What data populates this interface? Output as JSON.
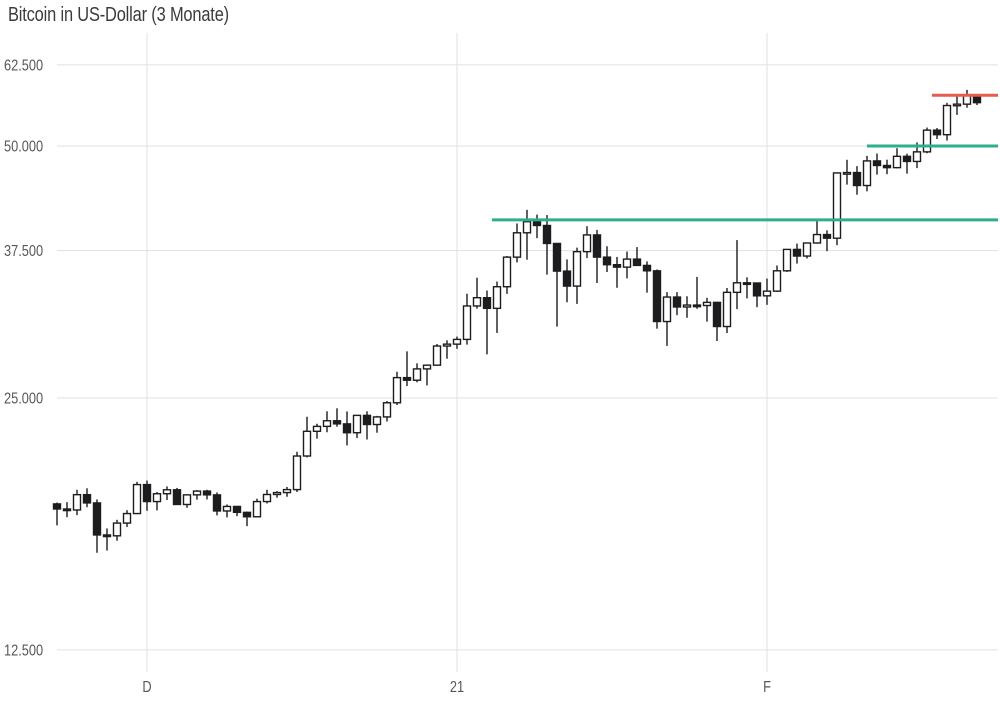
{
  "title": "Bitcoin in US-Dollar (3 Monate)",
  "chart_data": {
    "type": "candlestick",
    "instrument": "Bitcoin in US-Dollar",
    "period_label": "3 Monate",
    "y_scale": "log",
    "grid": true,
    "y_ticks": [
      {
        "label": "62.500",
        "value": 62500
      },
      {
        "label": "50.000",
        "value": 50000
      },
      {
        "label": "37.500",
        "value": 37500
      },
      {
        "label": "25.000",
        "value": 25000
      },
      {
        "label": "12.500",
        "value": 12500
      }
    ],
    "x_ticks": [
      {
        "label": "D",
        "candle_index": 9
      },
      {
        "label": "21",
        "candle_index": 40
      },
      {
        "label": "F",
        "candle_index": 71
      }
    ],
    "y_range": [
      11500,
      65000
    ],
    "candles_ohlc": [
      [
        18680,
        18750,
        17610,
        18420
      ],
      [
        18420,
        18770,
        18010,
        18370
      ],
      [
        18370,
        19420,
        18110,
        19160
      ],
      [
        19160,
        19500,
        18510,
        18730
      ],
      [
        18730,
        18910,
        16330,
        17150
      ],
      [
        17150,
        17460,
        16430,
        17110
      ],
      [
        17110,
        17880,
        16880,
        17720
      ],
      [
        17720,
        18360,
        17530,
        18190
      ],
      [
        18190,
        19850,
        18190,
        19700
      ],
      [
        19700,
        19920,
        18330,
        18800
      ],
      [
        18800,
        19300,
        18350,
        19210
      ],
      [
        19210,
        19600,
        18880,
        19420
      ],
      [
        19420,
        19520,
        18650,
        18650
      ],
      [
        18650,
        19160,
        18480,
        19150
      ],
      [
        19150,
        19400,
        18900,
        19350
      ],
      [
        19350,
        19420,
        18910,
        19150
      ],
      [
        19150,
        19280,
        18100,
        18320
      ],
      [
        18320,
        18650,
        18000,
        18550
      ],
      [
        18550,
        18560,
        18060,
        18250
      ],
      [
        18250,
        18290,
        17570,
        18030
      ],
      [
        18030,
        18950,
        18030,
        18800
      ],
      [
        18800,
        19420,
        18700,
        19170
      ],
      [
        19170,
        19350,
        19000,
        19270
      ],
      [
        19270,
        19570,
        19050,
        19430
      ],
      [
        19430,
        21560,
        19300,
        21310
      ],
      [
        21310,
        23740,
        21230,
        22810
      ],
      [
        22810,
        23290,
        22350,
        23120
      ],
      [
        23120,
        24100,
        22750,
        23480
      ],
      [
        23480,
        24300,
        23100,
        23280
      ],
      [
        23280,
        24090,
        21940,
        22720
      ],
      [
        22720,
        23830,
        22390,
        23830
      ],
      [
        23830,
        24100,
        22300,
        23240
      ],
      [
        23240,
        23800,
        22720,
        23730
      ],
      [
        23730,
        24790,
        23430,
        24670
      ],
      [
        24670,
        26870,
        24520,
        26440
      ],
      [
        26440,
        28420,
        25830,
        26250
      ],
      [
        26250,
        27500,
        26100,
        27080
      ],
      [
        27080,
        27410,
        25880,
        27360
      ],
      [
        27360,
        29000,
        27320,
        28840
      ],
      [
        28840,
        29300,
        27850,
        28990
      ],
      [
        28990,
        29600,
        28620,
        29370
      ],
      [
        29370,
        33300,
        28950,
        32200
      ],
      [
        32200,
        34800,
        31960,
        32940
      ],
      [
        32940,
        33600,
        28190,
        31990
      ],
      [
        31990,
        34440,
        29900,
        33950
      ],
      [
        33950,
        36940,
        33290,
        36830
      ],
      [
        36830,
        40400,
        36300,
        39380
      ],
      [
        39380,
        41950,
        36570,
        40600
      ],
      [
        40600,
        41400,
        38800,
        40180
      ],
      [
        40180,
        41350,
        35100,
        38240
      ],
      [
        38240,
        38270,
        30420,
        35440
      ],
      [
        35440,
        36600,
        32530,
        34010
      ],
      [
        34010,
        37800,
        32380,
        37390
      ],
      [
        37390,
        40100,
        36730,
        39150
      ],
      [
        39150,
        39700,
        34300,
        36830
      ],
      [
        36830,
        37950,
        35350,
        36070
      ],
      [
        36070,
        36850,
        33850,
        35830
      ],
      [
        35830,
        37400,
        34740,
        36630
      ],
      [
        36630,
        37860,
        36010,
        36000
      ],
      [
        36000,
        36400,
        33400,
        35470
      ],
      [
        35470,
        35600,
        30250,
        30850
      ],
      [
        30850,
        33450,
        28850,
        33000
      ],
      [
        33000,
        33450,
        31390,
        32110
      ],
      [
        32110,
        33070,
        31170,
        32280
      ],
      [
        32280,
        34880,
        31950,
        32240
      ],
      [
        32240,
        32930,
        30840,
        32520
      ],
      [
        32520,
        32560,
        29240,
        30430
      ],
      [
        30430,
        33830,
        29890,
        33430
      ],
      [
        33430,
        38600,
        31920,
        34320
      ],
      [
        34320,
        34840,
        32880,
        34300
      ],
      [
        34300,
        34340,
        32090,
        33110
      ],
      [
        33110,
        34720,
        32300,
        33540
      ],
      [
        33540,
        35990,
        33470,
        35470
      ],
      [
        35470,
        37660,
        35360,
        37620
      ],
      [
        37620,
        38230,
        36180,
        36940
      ],
      [
        36940,
        38310,
        36690,
        38290
      ],
      [
        38290,
        40950,
        38220,
        39190
      ],
      [
        39190,
        39650,
        37440,
        38800
      ],
      [
        38800,
        46500,
        38060,
        46430
      ],
      [
        46430,
        48140,
        44960,
        46480
      ],
      [
        46480,
        47310,
        43730,
        44850
      ],
      [
        44850,
        48660,
        44140,
        47990
      ],
      [
        47990,
        48980,
        46210,
        47390
      ],
      [
        47390,
        48150,
        46270,
        47110
      ],
      [
        47110,
        49700,
        47010,
        48600
      ],
      [
        48600,
        48950,
        46340,
        47920
      ],
      [
        47920,
        50500,
        47050,
        49200
      ],
      [
        49200,
        52600,
        49010,
        52230
      ],
      [
        52230,
        52530,
        50970,
        51580
      ],
      [
        51580,
        56300,
        50750,
        55890
      ],
      [
        55890,
        57550,
        54470,
        56100
      ],
      [
        56100,
        58350,
        55550,
        57410
      ],
      [
        57410,
        57500,
        55970,
        56330
      ]
    ],
    "overlay_lines": [
      {
        "name": "support-line-41000",
        "role": "support",
        "color": "#2fae8c",
        "value": 40800,
        "from_candle_index": 43.5
      },
      {
        "name": "support-line-50000",
        "role": "support",
        "color": "#2fae8c",
        "value": 50000,
        "from_candle_index": 81
      },
      {
        "name": "resistance-line-57500",
        "role": "resistance",
        "color": "#e95a50",
        "value": 57500,
        "from_candle_index": 87.5
      }
    ],
    "colors": {
      "background": "#ffffff",
      "grid": "#e1e1e1",
      "candle_up_fill": "#ffffff",
      "candle_down_fill": "#1d1d1f",
      "candle_stroke": "#1d1d1f",
      "title_text": "#3b3b3c",
      "axis_text": "#56575b",
      "support_line": "#2fae8c",
      "resistance_line": "#e95a50"
    }
  }
}
